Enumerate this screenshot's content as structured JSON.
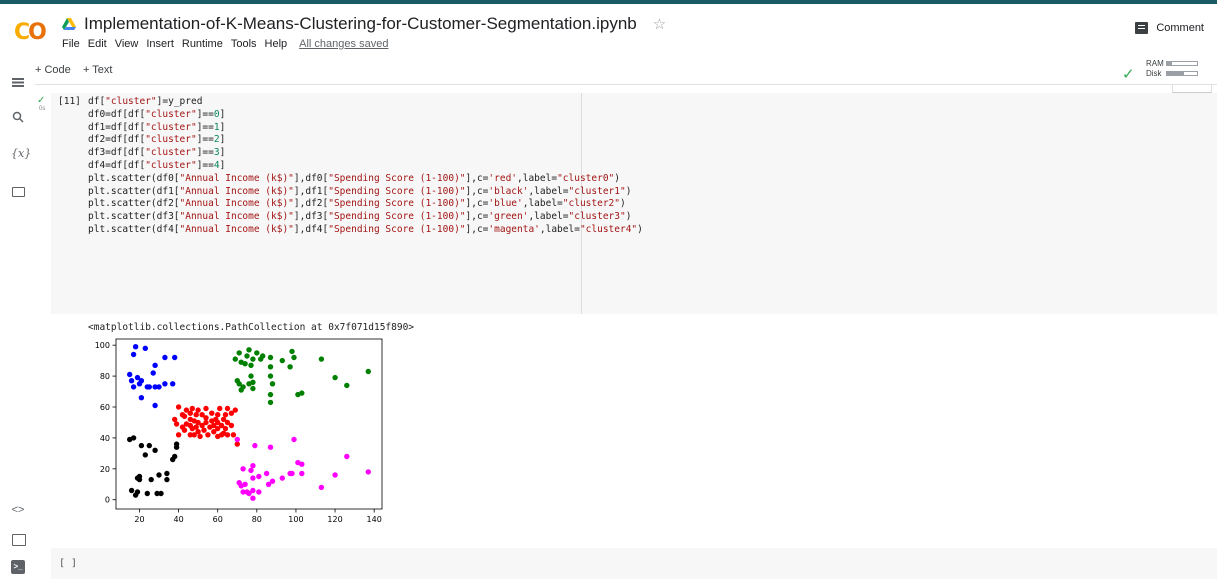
{
  "header": {
    "logo_text": "CO",
    "notebook_title": "Implementation-of-K-Means-Clustering-for-Customer-Segmentation.ipynb",
    "star_icon": "star-icon",
    "comment_label": "Comment",
    "accent_color": "#1a5b66",
    "logo_colors": [
      "#f9ab00",
      "#e8710a"
    ]
  },
  "menu": {
    "items": [
      "File",
      "Edit",
      "View",
      "Insert",
      "Runtime",
      "Tools",
      "Help"
    ],
    "save_status": "All changes saved"
  },
  "toolbar": {
    "add_code": "+ Code",
    "add_text": "+ Text"
  },
  "resources": {
    "ram_label": "RAM",
    "disk_label": "Disk",
    "ram_fraction": 0.15,
    "disk_fraction": 0.55
  },
  "sidebar": {
    "icons": [
      "menu-icon",
      "search-icon",
      "variables-icon",
      "folder-icon",
      "code-snippets-icon",
      "command-palette-icon",
      "terminal-icon"
    ],
    "variables_glyph": "{x}",
    "snippets_glyph": "<>",
    "terminal_glyph": ">_"
  },
  "cell": {
    "execution_count": "[11]",
    "run_time": "0s",
    "code_lines": [
      "df[\"cluster\"]=y_pred",
      "df0=df[df[\"cluster\"]==0]",
      "df1=df[df[\"cluster\"]==1]",
      "df2=df[df[\"cluster\"]==2]",
      "df3=df[df[\"cluster\"]==3]",
      "df4=df[df[\"cluster\"]==4]",
      "plt.scatter(df0[\"Annual Income (k$)\"],df0[\"Spending Score (1-100)\"],c='red',label=\"cluster0\")",
      "plt.scatter(df1[\"Annual Income (k$)\"],df1[\"Spending Score (1-100)\"],c='black',label=\"cluster1\")",
      "plt.scatter(df2[\"Annual Income (k$)\"],df2[\"Spending Score (1-100)\"],c='blue',label=\"cluster2\")",
      "plt.scatter(df3[\"Annual Income (k$)\"],df3[\"Spending Score (1-100)\"],c='green',label=\"cluster3\")",
      "plt.scatter(df4[\"Annual Income (k$)\"],df4[\"Spending Score (1-100)\"],c='magenta',label=\"cluster4\")"
    ],
    "output_text": "<matplotlib.collections.PathCollection at 0x7f071d15f890>"
  },
  "empty_cell": {
    "prompt": "[ ]"
  },
  "chart_data": {
    "type": "scatter",
    "title": "",
    "xlabel": "",
    "ylabel": "",
    "xlim": [
      8,
      144
    ],
    "ylim": [
      -6,
      104
    ],
    "xticks": [
      20,
      40,
      60,
      80,
      100,
      120,
      140
    ],
    "yticks": [
      0,
      20,
      40,
      60,
      80,
      100
    ],
    "grid": false,
    "series": [
      {
        "color": "red",
        "points": [
          [
            38,
            52
          ],
          [
            39,
            49
          ],
          [
            40,
            42
          ],
          [
            40,
            60
          ],
          [
            42,
            47
          ],
          [
            42,
            55
          ],
          [
            43,
            45
          ],
          [
            43,
            54
          ],
          [
            44,
            49
          ],
          [
            44,
            58
          ],
          [
            46,
            42
          ],
          [
            46,
            48
          ],
          [
            46,
            52
          ],
          [
            46,
            56
          ],
          [
            47,
            46
          ],
          [
            47,
            59
          ],
          [
            48,
            42
          ],
          [
            48,
            51
          ],
          [
            49,
            47
          ],
          [
            49,
            55
          ],
          [
            50,
            44
          ],
          [
            50,
            50
          ],
          [
            50,
            58
          ],
          [
            51,
            41
          ],
          [
            52,
            48
          ],
          [
            52,
            55
          ],
          [
            53,
            45
          ],
          [
            54,
            50
          ],
          [
            54,
            53
          ],
          [
            54,
            59
          ],
          [
            55,
            42
          ],
          [
            56,
            47
          ],
          [
            57,
            51
          ],
          [
            57,
            56
          ],
          [
            58,
            44
          ],
          [
            58,
            48
          ],
          [
            59,
            52
          ],
          [
            60,
            41
          ],
          [
            60,
            46
          ],
          [
            60,
            50
          ],
          [
            60,
            55
          ],
          [
            61,
            59
          ],
          [
            62,
            42
          ],
          [
            62,
            48
          ],
          [
            63,
            43
          ],
          [
            63,
            52
          ],
          [
            64,
            46
          ],
          [
            64,
            55
          ],
          [
            65,
            42
          ],
          [
            65,
            50
          ],
          [
            65,
            59
          ],
          [
            67,
            48
          ],
          [
            67,
            56
          ],
          [
            68,
            42
          ],
          [
            69,
            58
          ],
          [
            70,
            36
          ]
        ]
      },
      {
        "color": "black",
        "points": [
          [
            15,
            39
          ],
          [
            16,
            6
          ],
          [
            17,
            40
          ],
          [
            18,
            3
          ],
          [
            19,
            14
          ],
          [
            19,
            5
          ],
          [
            20,
            13
          ],
          [
            20,
            15
          ],
          [
            21,
            35
          ],
          [
            23,
            29
          ],
          [
            24,
            4
          ],
          [
            25,
            35
          ],
          [
            26,
            13
          ],
          [
            28,
            32
          ],
          [
            29,
            4
          ],
          [
            30,
            16
          ],
          [
            31,
            4
          ],
          [
            34,
            13
          ],
          [
            34,
            17
          ],
          [
            37,
            26
          ],
          [
            38,
            28
          ],
          [
            39,
            34
          ],
          [
            39,
            36
          ]
        ]
      },
      {
        "color": "blue",
        "points": [
          [
            15,
            81
          ],
          [
            16,
            77
          ],
          [
            17,
            94
          ],
          [
            17,
            73
          ],
          [
            18,
            99
          ],
          [
            19,
            79
          ],
          [
            20,
            75
          ],
          [
            21,
            77
          ],
          [
            21,
            66
          ],
          [
            23,
            98
          ],
          [
            24,
            73
          ],
          [
            25,
            73
          ],
          [
            27,
            82
          ],
          [
            28,
            61
          ],
          [
            28,
            87
          ],
          [
            28,
            73
          ],
          [
            30,
            73
          ],
          [
            33,
            92
          ],
          [
            33,
            75
          ],
          [
            37,
            75
          ],
          [
            38,
            92
          ]
        ]
      },
      {
        "color": "green",
        "points": [
          [
            69,
            91
          ],
          [
            70,
            77
          ],
          [
            71,
            75
          ],
          [
            71,
            95
          ],
          [
            72,
            71
          ],
          [
            72,
            89
          ],
          [
            73,
            73
          ],
          [
            74,
            88
          ],
          [
            75,
            93
          ],
          [
            76,
            75
          ],
          [
            76,
            97
          ],
          [
            77,
            87
          ],
          [
            77,
            80
          ],
          [
            78,
            91
          ],
          [
            78,
            76
          ],
          [
            78,
            72
          ],
          [
            80,
            95
          ],
          [
            82,
            91
          ],
          [
            83,
            93
          ],
          [
            87,
            86
          ],
          [
            87,
            80
          ],
          [
            87,
            63
          ],
          [
            87,
            68
          ],
          [
            87,
            92
          ],
          [
            88,
            75
          ],
          [
            93,
            90
          ],
          [
            97,
            86
          ],
          [
            98,
            96
          ],
          [
            99,
            92
          ],
          [
            101,
            68
          ],
          [
            103,
            69
          ],
          [
            113,
            91
          ],
          [
            120,
            79
          ],
          [
            126,
            74
          ],
          [
            137,
            83
          ]
        ]
      },
      {
        "color": "magenta",
        "points": [
          [
            70,
            39
          ],
          [
            71,
            11
          ],
          [
            72,
            9
          ],
          [
            73,
            5
          ],
          [
            73,
            20
          ],
          [
            74,
            10
          ],
          [
            75,
            5
          ],
          [
            76,
            4
          ],
          [
            77,
            19
          ],
          [
            78,
            14
          ],
          [
            78,
            1
          ],
          [
            78,
            6
          ],
          [
            78,
            22
          ],
          [
            79,
            35
          ],
          [
            81,
            15
          ],
          [
            81,
            5
          ],
          [
            85,
            17
          ],
          [
            86,
            10
          ],
          [
            87,
            34
          ],
          [
            88,
            12
          ],
          [
            93,
            14
          ],
          [
            97,
            17
          ],
          [
            98,
            17
          ],
          [
            99,
            39
          ],
          [
            101,
            24
          ],
          [
            103,
            23
          ],
          [
            103,
            17
          ],
          [
            113,
            8
          ],
          [
            120,
            16
          ],
          [
            126,
            28
          ],
          [
            137,
            18
          ]
        ]
      }
    ]
  }
}
